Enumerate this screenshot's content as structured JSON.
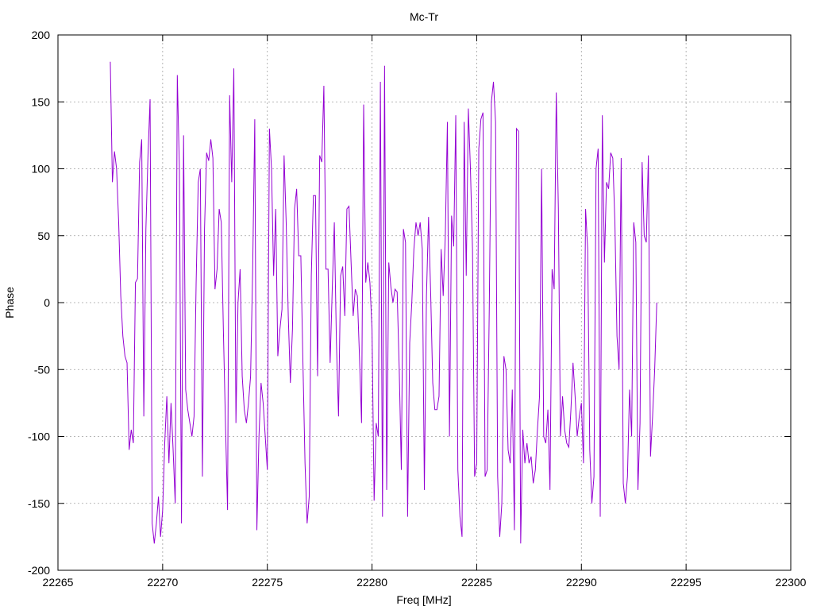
{
  "chart_data": {
    "type": "line",
    "title": "Mc-Tr",
    "xlabel": "Freq [MHz]",
    "ylabel": "Phase",
    "xlim": [
      22265,
      22300
    ],
    "ylim": [
      -200,
      200
    ],
    "grid": true,
    "x_ticks": [
      22265,
      22270,
      22275,
      22280,
      22285,
      22290,
      22295,
      22300
    ],
    "y_ticks": [
      -200,
      -150,
      -100,
      -50,
      0,
      50,
      100,
      150,
      200
    ],
    "x_start": 22267.5,
    "x_step": 0.1,
    "series": [
      {
        "color": "#9400d3",
        "values": [
          180,
          90,
          113,
          100,
          60,
          5,
          -25,
          -40,
          -45,
          -110,
          -95,
          -105,
          15,
          18,
          105,
          122,
          -85,
          55,
          110,
          152,
          -165,
          -180,
          -165,
          -145,
          -175,
          -155,
          -105,
          -70,
          -120,
          -75,
          -110,
          -150,
          170,
          100,
          -165,
          125,
          -65,
          -80,
          -90,
          -100,
          -85,
          15,
          90,
          100,
          -130,
          55,
          112,
          106,
          122,
          108,
          10,
          25,
          70,
          60,
          -20,
          -90,
          -155,
          155,
          90,
          175,
          -90,
          0,
          25,
          -55,
          -80,
          -90,
          -75,
          -55,
          25,
          137,
          -170,
          -100,
          -60,
          -75,
          -100,
          -125,
          130,
          100,
          20,
          70,
          -40,
          -20,
          -5,
          110,
          60,
          -10,
          -60,
          -20,
          70,
          85,
          35,
          35,
          -45,
          -120,
          -165,
          -145,
          20,
          80,
          80,
          -55,
          110,
          105,
          162,
          25,
          25,
          -45,
          10,
          60,
          -30,
          -85,
          20,
          27,
          -10,
          70,
          72,
          30,
          -10,
          10,
          5,
          -40,
          -90,
          148,
          15,
          30,
          15,
          -20,
          -148,
          -90,
          -100,
          165,
          -160,
          177,
          -140,
          30,
          12,
          0,
          10,
          8,
          -50,
          -125,
          55,
          45,
          -160,
          -30,
          0,
          40,
          60,
          50,
          60,
          40,
          -140,
          5,
          64,
          8,
          -60,
          -80,
          -80,
          -70,
          40,
          5,
          50,
          135,
          -100,
          65,
          42,
          140,
          -125,
          -160,
          -175,
          135,
          20,
          145,
          100,
          40,
          -130,
          -120,
          115,
          137,
          142,
          -130,
          -125,
          -5,
          150,
          165,
          135,
          -130,
          -175,
          -150,
          -40,
          -50,
          -110,
          -120,
          -65,
          -170,
          130,
          128,
          -180,
          -95,
          -120,
          -105,
          -120,
          -115,
          -135,
          -125,
          -95,
          -70,
          100,
          -100,
          -105,
          -80,
          -140,
          25,
          10,
          157,
          70,
          -100,
          -70,
          -95,
          -105,
          -108,
          -80,
          -45,
          -70,
          -100,
          -85,
          -75,
          -120,
          70,
          40,
          -110,
          -150,
          -130,
          100,
          115,
          -160,
          140,
          30,
          90,
          85,
          112,
          108,
          60,
          -25,
          -50,
          108,
          -135,
          -150,
          -130,
          -65,
          -100,
          60,
          45,
          -140,
          -90,
          105,
          50,
          45,
          110,
          -115,
          -85,
          -50,
          0
        ]
      }
    ]
  }
}
